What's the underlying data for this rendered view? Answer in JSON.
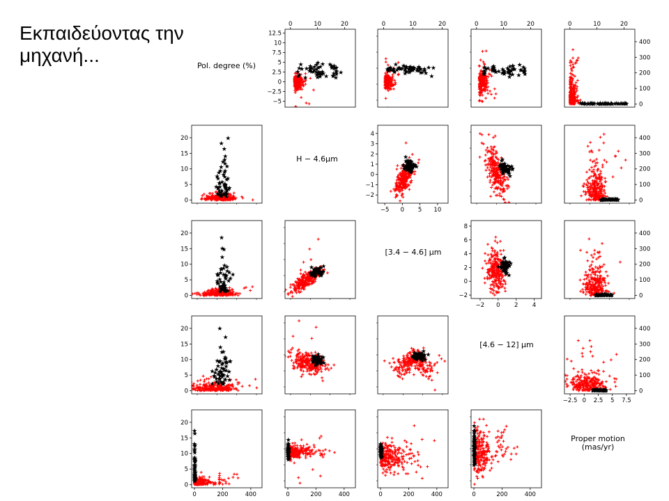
{
  "slide_title": "Εκπαιδεύοντας την μηχανή...",
  "marker_colors": {
    "class_a": "#ff0000",
    "class_b": "#000000"
  },
  "marker_shapes": {
    "class_a": "plus",
    "class_b": "star"
  },
  "chart_data": {
    "type": "scatter",
    "layout": "pair-plot 5x5",
    "variables": [
      {
        "label": "Pol. degree (%)"
      },
      {
        "label": "H − 4.6μm"
      },
      {
        "label": "[3.4 − 4.6] μm"
      },
      {
        "label": "[4.6 − 12] μm"
      },
      {
        "label": "Proper motion\n(mas/yr)"
      }
    ],
    "panels": [
      {
        "row": 0,
        "col": 1,
        "xlim": [
          -2,
          24
        ],
        "ylim": [
          -6.5,
          13.5
        ],
        "xticks": [
          0,
          10,
          20
        ],
        "yticks": [
          -5,
          -2.5,
          0,
          2.5,
          5,
          7.5,
          10,
          12.5
        ],
        "xticks_pos": "top",
        "yticks_pos": "left"
      },
      {
        "row": 0,
        "col": 2,
        "xlim": [
          -2,
          22
        ],
        "ylim": [
          -6.5,
          13.5
        ],
        "xticks": [
          0,
          10,
          20
        ],
        "xticks_pos": "top"
      },
      {
        "row": 0,
        "col": 3,
        "xlim": [
          -2,
          24
        ],
        "ylim": [
          -6.5,
          13.5
        ],
        "xticks": [
          0,
          10,
          20
        ],
        "xticks_pos": "top"
      },
      {
        "row": 0,
        "col": 4,
        "xlim": [
          -2,
          24
        ],
        "ylim": [
          -20,
          480
        ],
        "xticks": [
          0,
          10,
          20
        ],
        "yticks": [
          0,
          100,
          200,
          300,
          400
        ],
        "xticks_pos": "top",
        "yticks_pos": "right"
      },
      {
        "row": 1,
        "col": 0,
        "xlim": [
          -20,
          480
        ],
        "ylim": [
          -1,
          24
        ],
        "yticks": [
          0,
          5,
          10,
          15,
          20
        ],
        "yticks_pos": "left"
      },
      {
        "row": 1,
        "col": 2,
        "xlim": [
          -7,
          13
        ],
        "ylim": [
          -2.8,
          4.8
        ],
        "xticks": [
          -5,
          0,
          5,
          10
        ],
        "yticks": [
          -2,
          -1,
          0,
          1,
          2,
          3,
          4
        ],
        "xticks_pos": "bottom",
        "yticks_pos": "left"
      },
      {
        "row": 1,
        "col": 3,
        "xlim": [
          -3,
          4.5
        ],
        "ylim": [
          -2.8,
          4.8
        ]
      },
      {
        "row": 1,
        "col": 4,
        "xlim": [
          -3.5,
          9
        ],
        "ylim": [
          -20,
          480
        ],
        "yticks": [
          0,
          100,
          200,
          300,
          400
        ],
        "yticks_pos": "right"
      },
      {
        "row": 2,
        "col": 0,
        "xlim": [
          -20,
          480
        ],
        "ylim": [
          -1,
          24
        ],
        "yticks": [
          0,
          5,
          10,
          15,
          20
        ],
        "yticks_pos": "left"
      },
      {
        "row": 2,
        "col": 1,
        "xlim": [
          -7,
          13
        ],
        "ylim": [
          -2.5,
          8.5
        ]
      },
      {
        "row": 2,
        "col": 3,
        "xlim": [
          -3,
          4.8
        ],
        "ylim": [
          -2.5,
          8.8
        ],
        "xticks": [
          -2,
          0,
          2,
          4
        ],
        "yticks": [
          -2,
          0,
          2,
          4,
          6,
          8
        ],
        "xticks_pos": "bottom",
        "yticks_pos": "left"
      },
      {
        "row": 2,
        "col": 4,
        "xlim": [
          -3.5,
          9
        ],
        "ylim": [
          -20,
          480
        ],
        "yticks": [
          0,
          100,
          200,
          300,
          400
        ],
        "yticks_pos": "right"
      },
      {
        "row": 3,
        "col": 0,
        "xlim": [
          -20,
          480
        ],
        "ylim": [
          -1,
          24
        ],
        "yticks": [
          0,
          5,
          10,
          15,
          20
        ],
        "yticks_pos": "left"
      },
      {
        "row": 3,
        "col": 1,
        "xlim": [
          -7,
          13
        ],
        "ylim": [
          -2.8,
          4.8
        ]
      },
      {
        "row": 3,
        "col": 2,
        "xlim": [
          -3,
          4.5
        ],
        "ylim": [
          -2.8,
          4.8
        ]
      },
      {
        "row": 3,
        "col": 4,
        "xlim": [
          -3.5,
          9
        ],
        "ylim": [
          -20,
          480
        ],
        "xticks": [
          -2.5,
          0,
          2.5,
          5,
          7.5
        ],
        "yticks": [
          0,
          100,
          200,
          300,
          400
        ],
        "xticks_pos": "bottom",
        "yticks_pos": "right"
      },
      {
        "row": 4,
        "col": 0,
        "xlim": [
          -20,
          480
        ],
        "ylim": [
          -1,
          24
        ],
        "xticks": [
          0,
          200,
          400
        ],
        "yticks": [
          0,
          5,
          10,
          15,
          20
        ],
        "xticks_pos": "bottom",
        "yticks_pos": "left"
      },
      {
        "row": 4,
        "col": 1,
        "xlim": [
          -20,
          480
        ],
        "ylim": [
          -7,
          13
        ],
        "xticks": [
          0,
          200,
          400
        ],
        "xticks_pos": "bottom"
      },
      {
        "row": 4,
        "col": 2,
        "xlim": [
          -20,
          480
        ],
        "ylim": [
          -2.8,
          4.8
        ],
        "xticks": [
          0,
          200,
          400
        ],
        "xticks_pos": "bottom"
      },
      {
        "row": 4,
        "col": 3,
        "xlim": [
          -20,
          480
        ],
        "ylim": [
          -3,
          4.5
        ],
        "xticks": [
          0,
          200,
          400
        ],
        "xticks_pos": "bottom"
      }
    ]
  }
}
